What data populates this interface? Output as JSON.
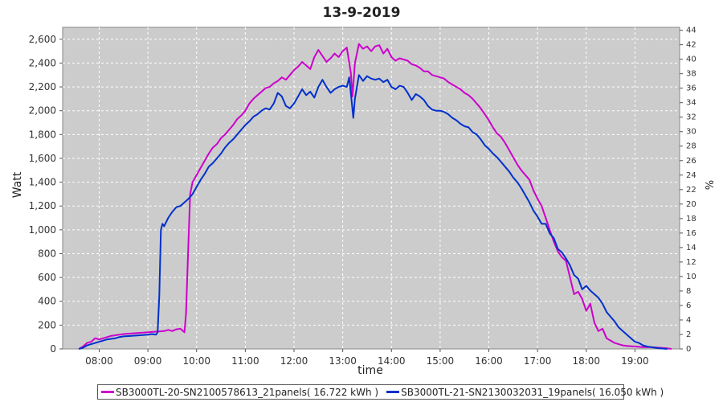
{
  "chart_data": {
    "type": "line",
    "title": "13-9-2019",
    "xlabel": "time",
    "ylabel": "Watt",
    "y2label": "%",
    "xlim": [
      "07:15",
      "19:55"
    ],
    "ylim": [
      0,
      2700
    ],
    "y2lim": [
      0,
      44.4
    ],
    "x_ticks": [
      "08:00",
      "09:00",
      "10:00",
      "11:00",
      "12:00",
      "13:00",
      "14:00",
      "15:00",
      "16:00",
      "17:00",
      "18:00",
      "19:00"
    ],
    "y_ticks": [
      "0",
      "200",
      "400",
      "600",
      "800",
      "1,000",
      "1,200",
      "1,400",
      "1,600",
      "1,800",
      "2,000",
      "2,200",
      "2,400",
      "2,600"
    ],
    "y2_ticks": [
      "0",
      "2",
      "4",
      "6",
      "8",
      "10",
      "12",
      "14",
      "16",
      "18",
      "20",
      "22",
      "24",
      "26",
      "28",
      "30",
      "32",
      "34",
      "36",
      "38",
      "40",
      "42",
      "44"
    ],
    "grid": true,
    "legend_position": "bottom",
    "series": [
      {
        "name": "SB3000TL-20-SN2100578613_21panels( 16.722 kWh )",
        "color": "#cc00cc",
        "points": [
          [
            "07:35",
            0
          ],
          [
            "07:40",
            20
          ],
          [
            "07:45",
            50
          ],
          [
            "07:50",
            60
          ],
          [
            "07:55",
            90
          ],
          [
            "08:00",
            80
          ],
          [
            "08:05",
            90
          ],
          [
            "08:10",
            100
          ],
          [
            "08:15",
            110
          ],
          [
            "08:20",
            115
          ],
          [
            "08:25",
            120
          ],
          [
            "08:30",
            125
          ],
          [
            "08:40",
            130
          ],
          [
            "08:50",
            135
          ],
          [
            "09:00",
            140
          ],
          [
            "09:10",
            145
          ],
          [
            "09:20",
            150
          ],
          [
            "09:25",
            160
          ],
          [
            "09:30",
            150
          ],
          [
            "09:35",
            165
          ],
          [
            "09:40",
            170
          ],
          [
            "09:45",
            140
          ],
          [
            "09:47",
            300
          ],
          [
            "09:50",
            900
          ],
          [
            "09:52",
            1300
          ],
          [
            "09:55",
            1400
          ],
          [
            "10:00",
            1460
          ],
          [
            "10:05",
            1520
          ],
          [
            "10:10",
            1580
          ],
          [
            "10:15",
            1640
          ],
          [
            "10:20",
            1690
          ],
          [
            "10:25",
            1720
          ],
          [
            "10:30",
            1770
          ],
          [
            "10:35",
            1800
          ],
          [
            "10:40",
            1840
          ],
          [
            "10:45",
            1880
          ],
          [
            "10:50",
            1930
          ],
          [
            "10:55",
            1960
          ],
          [
            "11:00",
            2000
          ],
          [
            "11:05",
            2060
          ],
          [
            "11:10",
            2100
          ],
          [
            "11:15",
            2130
          ],
          [
            "11:20",
            2160
          ],
          [
            "11:25",
            2190
          ],
          [
            "11:30",
            2200
          ],
          [
            "11:35",
            2230
          ],
          [
            "11:40",
            2250
          ],
          [
            "11:45",
            2280
          ],
          [
            "11:50",
            2260
          ],
          [
            "11:55",
            2300
          ],
          [
            "12:00",
            2340
          ],
          [
            "12:05",
            2370
          ],
          [
            "12:10",
            2410
          ],
          [
            "12:15",
            2380
          ],
          [
            "12:20",
            2350
          ],
          [
            "12:25",
            2450
          ],
          [
            "12:30",
            2510
          ],
          [
            "12:35",
            2460
          ],
          [
            "12:40",
            2410
          ],
          [
            "12:45",
            2440
          ],
          [
            "12:50",
            2480
          ],
          [
            "12:55",
            2450
          ],
          [
            "13:00",
            2500
          ],
          [
            "13:05",
            2530
          ],
          [
            "13:10",
            2320
          ],
          [
            "13:12",
            2120
          ],
          [
            "13:15",
            2400
          ],
          [
            "13:20",
            2560
          ],
          [
            "13:25",
            2520
          ],
          [
            "13:30",
            2540
          ],
          [
            "13:35",
            2500
          ],
          [
            "13:40",
            2540
          ],
          [
            "13:45",
            2550
          ],
          [
            "13:50",
            2480
          ],
          [
            "13:55",
            2520
          ],
          [
            "14:00",
            2450
          ],
          [
            "14:05",
            2420
          ],
          [
            "14:10",
            2440
          ],
          [
            "14:15",
            2430
          ],
          [
            "14:20",
            2420
          ],
          [
            "14:25",
            2390
          ],
          [
            "14:30",
            2380
          ],
          [
            "14:35",
            2360
          ],
          [
            "14:40",
            2330
          ],
          [
            "14:45",
            2330
          ],
          [
            "14:50",
            2300
          ],
          [
            "14:55",
            2290
          ],
          [
            "15:00",
            2280
          ],
          [
            "15:05",
            2270
          ],
          [
            "15:10",
            2240
          ],
          [
            "15:15",
            2220
          ],
          [
            "15:20",
            2200
          ],
          [
            "15:25",
            2180
          ],
          [
            "15:30",
            2150
          ],
          [
            "15:35",
            2130
          ],
          [
            "15:40",
            2100
          ],
          [
            "15:45",
            2060
          ],
          [
            "15:50",
            2020
          ],
          [
            "15:55",
            1970
          ],
          [
            "16:00",
            1920
          ],
          [
            "16:05",
            1860
          ],
          [
            "16:10",
            1810
          ],
          [
            "16:15",
            1780
          ],
          [
            "16:20",
            1730
          ],
          [
            "16:25",
            1670
          ],
          [
            "16:30",
            1610
          ],
          [
            "16:35",
            1550
          ],
          [
            "16:40",
            1500
          ],
          [
            "16:45",
            1460
          ],
          [
            "16:50",
            1420
          ],
          [
            "16:55",
            1330
          ],
          [
            "17:00",
            1260
          ],
          [
            "17:05",
            1200
          ],
          [
            "17:10",
            1100
          ],
          [
            "17:15",
            1000
          ],
          [
            "17:20",
            900
          ],
          [
            "17:25",
            820
          ],
          [
            "17:30",
            770
          ],
          [
            "17:35",
            740
          ],
          [
            "17:40",
            600
          ],
          [
            "17:45",
            460
          ],
          [
            "17:50",
            480
          ],
          [
            "17:55",
            420
          ],
          [
            "18:00",
            320
          ],
          [
            "18:05",
            380
          ],
          [
            "18:10",
            220
          ],
          [
            "18:15",
            150
          ],
          [
            "18:20",
            170
          ],
          [
            "18:25",
            90
          ],
          [
            "18:30",
            70
          ],
          [
            "18:35",
            50
          ],
          [
            "18:40",
            40
          ],
          [
            "18:45",
            30
          ],
          [
            "18:50",
            25
          ],
          [
            "19:00",
            20
          ],
          [
            "19:10",
            15
          ],
          [
            "19:20",
            15
          ],
          [
            "19:30",
            10
          ],
          [
            "19:40",
            5
          ],
          [
            "19:45",
            0
          ]
        ]
      },
      {
        "name": "SB3000TL-21-SN2130032031_19panels( 16.050 kWh )",
        "color": "#0030cc",
        "points": [
          [
            "07:35",
            0
          ],
          [
            "07:40",
            10
          ],
          [
            "07:45",
            30
          ],
          [
            "07:50",
            40
          ],
          [
            "07:55",
            50
          ],
          [
            "08:00",
            60
          ],
          [
            "08:05",
            70
          ],
          [
            "08:10",
            80
          ],
          [
            "08:15",
            85
          ],
          [
            "08:20",
            90
          ],
          [
            "08:25",
            100
          ],
          [
            "08:30",
            105
          ],
          [
            "08:40",
            110
          ],
          [
            "08:50",
            115
          ],
          [
            "09:00",
            120
          ],
          [
            "09:05",
            125
          ],
          [
            "09:10",
            120
          ],
          [
            "09:12",
            140
          ],
          [
            "09:14",
            450
          ],
          [
            "09:16",
            1000
          ],
          [
            "09:18",
            1050
          ],
          [
            "09:20",
            1030
          ],
          [
            "09:25",
            1100
          ],
          [
            "09:30",
            1150
          ],
          [
            "09:35",
            1190
          ],
          [
            "09:40",
            1200
          ],
          [
            "09:45",
            1230
          ],
          [
            "09:50",
            1260
          ],
          [
            "09:55",
            1300
          ],
          [
            "10:00",
            1360
          ],
          [
            "10:05",
            1420
          ],
          [
            "10:10",
            1470
          ],
          [
            "10:15",
            1530
          ],
          [
            "10:20",
            1560
          ],
          [
            "10:25",
            1600
          ],
          [
            "10:30",
            1640
          ],
          [
            "10:35",
            1690
          ],
          [
            "10:40",
            1730
          ],
          [
            "10:45",
            1760
          ],
          [
            "10:50",
            1800
          ],
          [
            "10:55",
            1840
          ],
          [
            "11:00",
            1880
          ],
          [
            "11:05",
            1910
          ],
          [
            "11:10",
            1950
          ],
          [
            "11:15",
            1970
          ],
          [
            "11:20",
            2000
          ],
          [
            "11:25",
            2020
          ],
          [
            "11:30",
            2010
          ],
          [
            "11:35",
            2060
          ],
          [
            "11:40",
            2150
          ],
          [
            "11:45",
            2120
          ],
          [
            "11:50",
            2040
          ],
          [
            "11:55",
            2020
          ],
          [
            "12:00",
            2060
          ],
          [
            "12:05",
            2120
          ],
          [
            "12:10",
            2180
          ],
          [
            "12:15",
            2130
          ],
          [
            "12:20",
            2160
          ],
          [
            "12:25",
            2110
          ],
          [
            "12:30",
            2200
          ],
          [
            "12:35",
            2260
          ],
          [
            "12:40",
            2200
          ],
          [
            "12:45",
            2150
          ],
          [
            "12:50",
            2180
          ],
          [
            "12:55",
            2200
          ],
          [
            "13:00",
            2210
          ],
          [
            "13:05",
            2200
          ],
          [
            "13:08",
            2280
          ],
          [
            "13:10",
            2150
          ],
          [
            "13:13",
            1940
          ],
          [
            "13:15",
            2100
          ],
          [
            "13:20",
            2300
          ],
          [
            "13:25",
            2250
          ],
          [
            "13:30",
            2290
          ],
          [
            "13:35",
            2270
          ],
          [
            "13:40",
            2260
          ],
          [
            "13:45",
            2270
          ],
          [
            "13:50",
            2240
          ],
          [
            "13:55",
            2260
          ],
          [
            "14:00",
            2200
          ],
          [
            "14:05",
            2180
          ],
          [
            "14:10",
            2210
          ],
          [
            "14:15",
            2200
          ],
          [
            "14:20",
            2150
          ],
          [
            "14:25",
            2090
          ],
          [
            "14:30",
            2140
          ],
          [
            "14:35",
            2120
          ],
          [
            "14:40",
            2090
          ],
          [
            "14:45",
            2040
          ],
          [
            "14:50",
            2010
          ],
          [
            "14:55",
            2000
          ],
          [
            "15:00",
            2000
          ],
          [
            "15:05",
            1990
          ],
          [
            "15:10",
            1970
          ],
          [
            "15:15",
            1940
          ],
          [
            "15:20",
            1920
          ],
          [
            "15:25",
            1890
          ],
          [
            "15:30",
            1870
          ],
          [
            "15:35",
            1860
          ],
          [
            "15:40",
            1820
          ],
          [
            "15:45",
            1800
          ],
          [
            "15:50",
            1760
          ],
          [
            "15:55",
            1710
          ],
          [
            "16:00",
            1680
          ],
          [
            "16:05",
            1640
          ],
          [
            "16:10",
            1610
          ],
          [
            "16:15",
            1570
          ],
          [
            "16:20",
            1530
          ],
          [
            "16:25",
            1490
          ],
          [
            "16:30",
            1440
          ],
          [
            "16:35",
            1400
          ],
          [
            "16:40",
            1350
          ],
          [
            "16:45",
            1290
          ],
          [
            "16:50",
            1230
          ],
          [
            "16:55",
            1160
          ],
          [
            "17:00",
            1110
          ],
          [
            "17:05",
            1050
          ],
          [
            "17:10",
            1050
          ],
          [
            "17:15",
            970
          ],
          [
            "17:20",
            930
          ],
          [
            "17:25",
            840
          ],
          [
            "17:30",
            810
          ],
          [
            "17:35",
            760
          ],
          [
            "17:40",
            700
          ],
          [
            "17:45",
            620
          ],
          [
            "17:50",
            590
          ],
          [
            "17:55",
            500
          ],
          [
            "18:00",
            530
          ],
          [
            "18:05",
            490
          ],
          [
            "18:10",
            460
          ],
          [
            "18:15",
            430
          ],
          [
            "18:20",
            380
          ],
          [
            "18:25",
            310
          ],
          [
            "18:30",
            270
          ],
          [
            "18:35",
            230
          ],
          [
            "18:40",
            180
          ],
          [
            "18:45",
            150
          ],
          [
            "18:50",
            120
          ],
          [
            "18:55",
            90
          ],
          [
            "19:00",
            60
          ],
          [
            "19:05",
            50
          ],
          [
            "19:10",
            30
          ],
          [
            "19:15",
            20
          ],
          [
            "19:20",
            15
          ],
          [
            "19:25",
            10
          ],
          [
            "19:30",
            5
          ],
          [
            "19:40",
            0
          ]
        ]
      }
    ]
  }
}
